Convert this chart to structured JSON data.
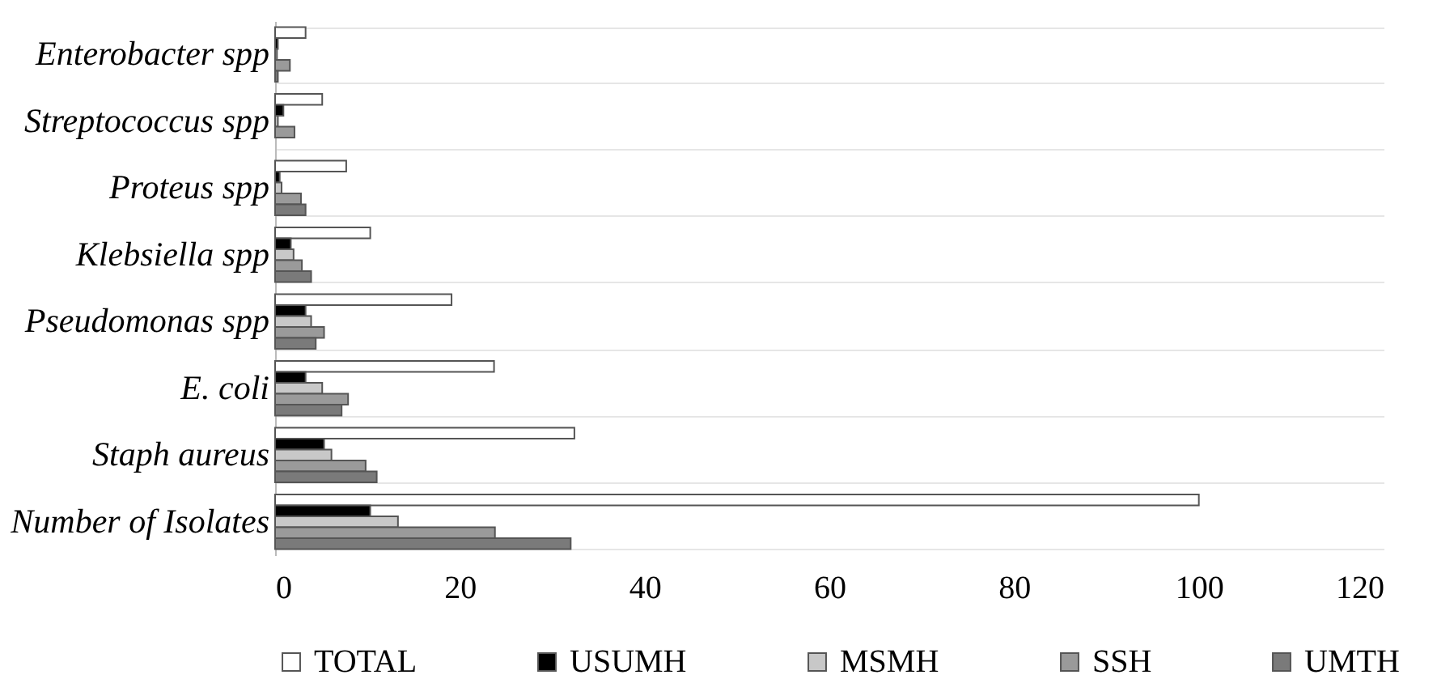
{
  "chart_data": {
    "type": "bar",
    "orientation": "horizontal",
    "categories": [
      "Enterobacter spp",
      "Streptococcus spp",
      "Proteus spp",
      "Klebsiella spp",
      "Pseudomonas spp",
      "E. coli",
      "Staph aureus",
      "Number of Isolates"
    ],
    "series": [
      {
        "name": "TOTAL",
        "color": "#ffffff",
        "values": [
          3.3,
          5.1,
          7.7,
          10.3,
          19.1,
          23.7,
          32.4,
          100
        ]
      },
      {
        "name": "USUMH",
        "color": "#000000",
        "values": [
          0.3,
          0.9,
          0.5,
          1.7,
          3.3,
          3.3,
          5.3,
          10.3
        ]
      },
      {
        "name": "MSMH",
        "color": "#c8c8c8",
        "values": [
          0.2,
          0.3,
          0.7,
          2,
          3.9,
          5.1,
          6.1,
          13.3
        ]
      },
      {
        "name": "SSH",
        "color": "#9a9a9a",
        "values": [
          1.6,
          2.1,
          2.8,
          2.9,
          5.3,
          7.9,
          9.8,
          23.8
        ]
      },
      {
        "name": "UMTH",
        "color": "#7a7a7a",
        "values": [
          0.3,
          0,
          3.3,
          3.9,
          4.4,
          7.2,
          11,
          32
        ]
      }
    ],
    "xlim": [
      0,
      120
    ],
    "xticks": [
      0,
      20,
      40,
      60,
      80,
      100,
      120
    ],
    "grid": "y",
    "legend": "bottom"
  }
}
